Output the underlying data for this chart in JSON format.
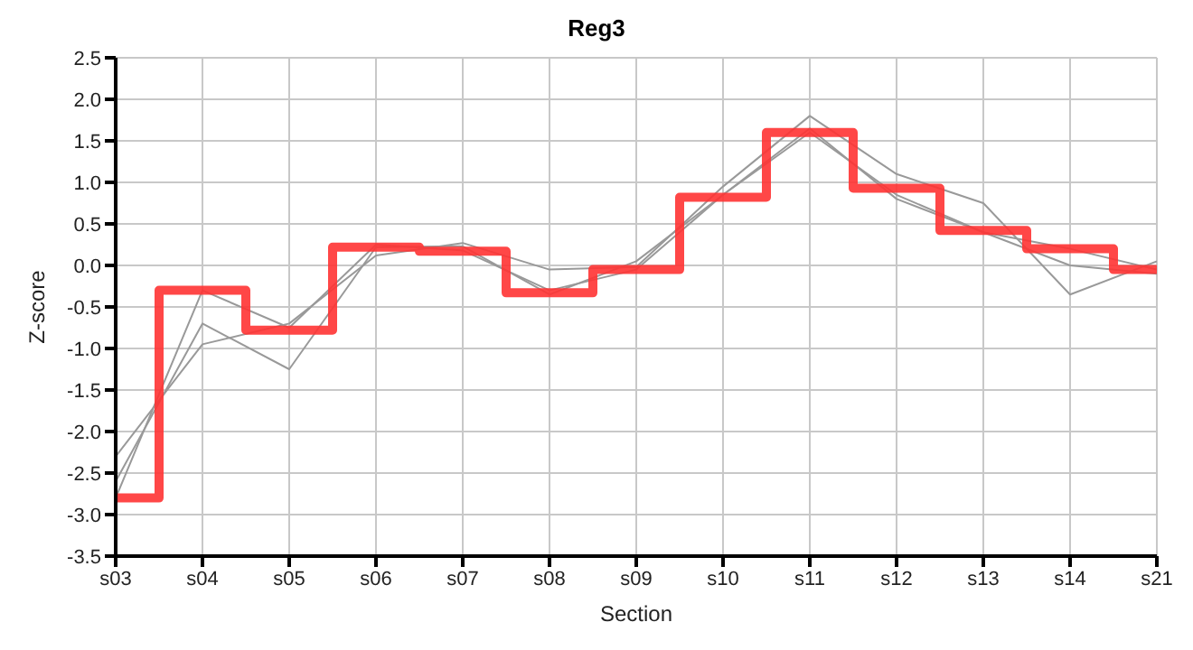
{
  "chart_data": {
    "type": "line",
    "title": "Reg3",
    "xlabel": "Section",
    "ylabel": "Z-score",
    "categories": [
      "s03",
      "s04",
      "s05",
      "s06",
      "s07",
      "s08",
      "s09",
      "s10",
      "s11",
      "s12",
      "s13",
      "s14",
      "s21"
    ],
    "series": [
      {
        "color": "#999999",
        "values": [
          -2.8,
          -0.3,
          -0.75,
          0.25,
          0.18,
          -0.3,
          -0.05,
          0.85,
          1.65,
          0.8,
          0.4,
          0.2,
          -0.05
        ]
      },
      {
        "color": "#999999",
        "values": [
          -2.3,
          -0.95,
          -0.7,
          0.12,
          0.27,
          -0.05,
          -0.02,
          0.95,
          1.8,
          1.1,
          0.75,
          -0.35,
          0.05
        ]
      },
      {
        "color": "#999999",
        "values": [
          -2.6,
          -0.7,
          -1.25,
          0.22,
          0.23,
          -0.35,
          0.05,
          0.85,
          1.6,
          0.85,
          0.4,
          0.0,
          -0.1
        ]
      },
      {
        "type": "step",
        "color": "#ff3333",
        "values": [
          -2.8,
          -0.3,
          -0.78,
          0.22,
          0.17,
          -0.33,
          -0.05,
          0.82,
          1.6,
          0.93,
          0.42,
          0.2,
          -0.05
        ]
      }
    ],
    "ylim": [
      -3.5,
      2.5
    ],
    "yticks": [
      -3.5,
      {
        "value": -3,
        "label": "-3.0"
      },
      -2.5,
      {
        "value": -2,
        "label": "-2.0"
      },
      -1.5,
      {
        "value": -1,
        "label": "-1.0"
      },
      -0.5,
      {
        "value": 0,
        "label": "0.0"
      },
      0.5,
      {
        "value": 1,
        "label": "1.0"
      },
      1.5,
      {
        "value": 2,
        "label": "2.0"
      },
      2.5
    ],
    "grid": true,
    "legend": false,
    "marker": "none"
  }
}
